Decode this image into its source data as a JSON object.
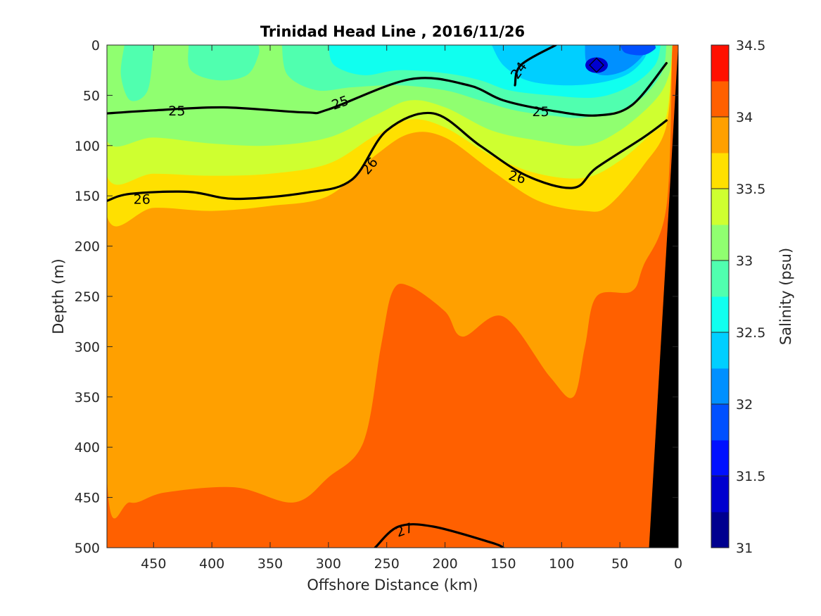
{
  "chart_data": {
    "type": "heatmap",
    "title": "Trinidad Head Line , 2016/11/26",
    "xlabel": "Offshore Distance (km)",
    "ylabel": "Depth (m)",
    "xlim": [
      490,
      0
    ],
    "ylim": [
      0,
      500
    ],
    "y_reversed": true,
    "x_reversed": true,
    "x_ticks": [
      450,
      400,
      350,
      300,
      250,
      200,
      150,
      100,
      50,
      0
    ],
    "y_ticks": [
      0,
      50,
      100,
      150,
      200,
      250,
      300,
      350,
      400,
      450,
      500
    ],
    "colorbar": {
      "label": "Salinity (psu)",
      "range": [
        31,
        34.5
      ],
      "ticks": [
        31,
        31.5,
        32,
        32.5,
        33,
        33.5,
        34,
        34.5
      ],
      "levels": [
        31.0,
        31.25,
        31.5,
        31.75,
        32.0,
        32.25,
        32.5,
        32.75,
        33.0,
        33.25,
        33.5,
        33.75,
        34.0,
        34.25,
        34.5
      ],
      "colors": [
        "#00008f",
        "#0000cf",
        "#0010ff",
        "#0050ff",
        "#0090ff",
        "#00cfff",
        "#10ffef",
        "#50ffaf",
        "#90ff70",
        "#cfff30",
        "#ffe000",
        "#ffa000",
        "#ff6000",
        "#ff1000",
        "#cf0000"
      ]
    },
    "salinity_layers": [
      {
        "salinity_range": [
          33.0,
          33.25
        ],
        "depth_top_m": 0,
        "depth_bottom_m": 95
      },
      {
        "salinity_range": [
          33.25,
          33.5
        ],
        "depth_top_m": 95,
        "depth_bottom_m": 120
      },
      {
        "salinity_range": [
          33.5,
          33.75
        ],
        "depth_top_m": 120,
        "depth_bottom_m": 160
      },
      {
        "salinity_range": [
          33.75,
          34.0
        ],
        "depth_top_m": 160,
        "depth_bottom_m": 430
      },
      {
        "salinity_range": [
          34.0,
          34.25
        ],
        "depth_top_m": 430,
        "depth_bottom_m": 500
      }
    ],
    "surface_low_salinity_core": {
      "offshore_km": 70,
      "depth_m": 20,
      "min_salinity": 31.25
    },
    "density_contours": [
      {
        "label": "24",
        "points": [
          [
            140,
            40
          ],
          [
            135,
            20
          ],
          [
            105,
            0
          ]
        ]
      },
      {
        "label": "25",
        "points": [
          [
            490,
            68
          ],
          [
            450,
            65
          ],
          [
            390,
            62
          ],
          [
            320,
            67
          ],
          [
            300,
            64
          ],
          [
            230,
            34
          ],
          [
            180,
            40
          ],
          [
            150,
            55
          ],
          [
            110,
            65
          ],
          [
            70,
            70
          ],
          [
            40,
            60
          ],
          [
            10,
            18
          ]
        ]
      },
      {
        "label": "26",
        "points": [
          [
            490,
            155
          ],
          [
            470,
            148
          ],
          [
            420,
            146
          ],
          [
            380,
            153
          ],
          [
            320,
            147
          ],
          [
            280,
            134
          ],
          [
            250,
            85
          ],
          [
            210,
            68
          ],
          [
            170,
            100
          ],
          [
            130,
            130
          ],
          [
            90,
            142
          ],
          [
            70,
            122
          ],
          [
            30,
            92
          ],
          [
            10,
            75
          ]
        ]
      },
      {
        "label": "27",
        "points": [
          [
            260,
            500
          ],
          [
            240,
            479
          ],
          [
            210,
            479
          ],
          [
            160,
            495
          ],
          [
            150,
            500
          ]
        ]
      }
    ],
    "bottom_topography": {
      "type": "shelf",
      "offshore_km_at_500m": 25,
      "offshore_km_at_surface": 0
    }
  }
}
